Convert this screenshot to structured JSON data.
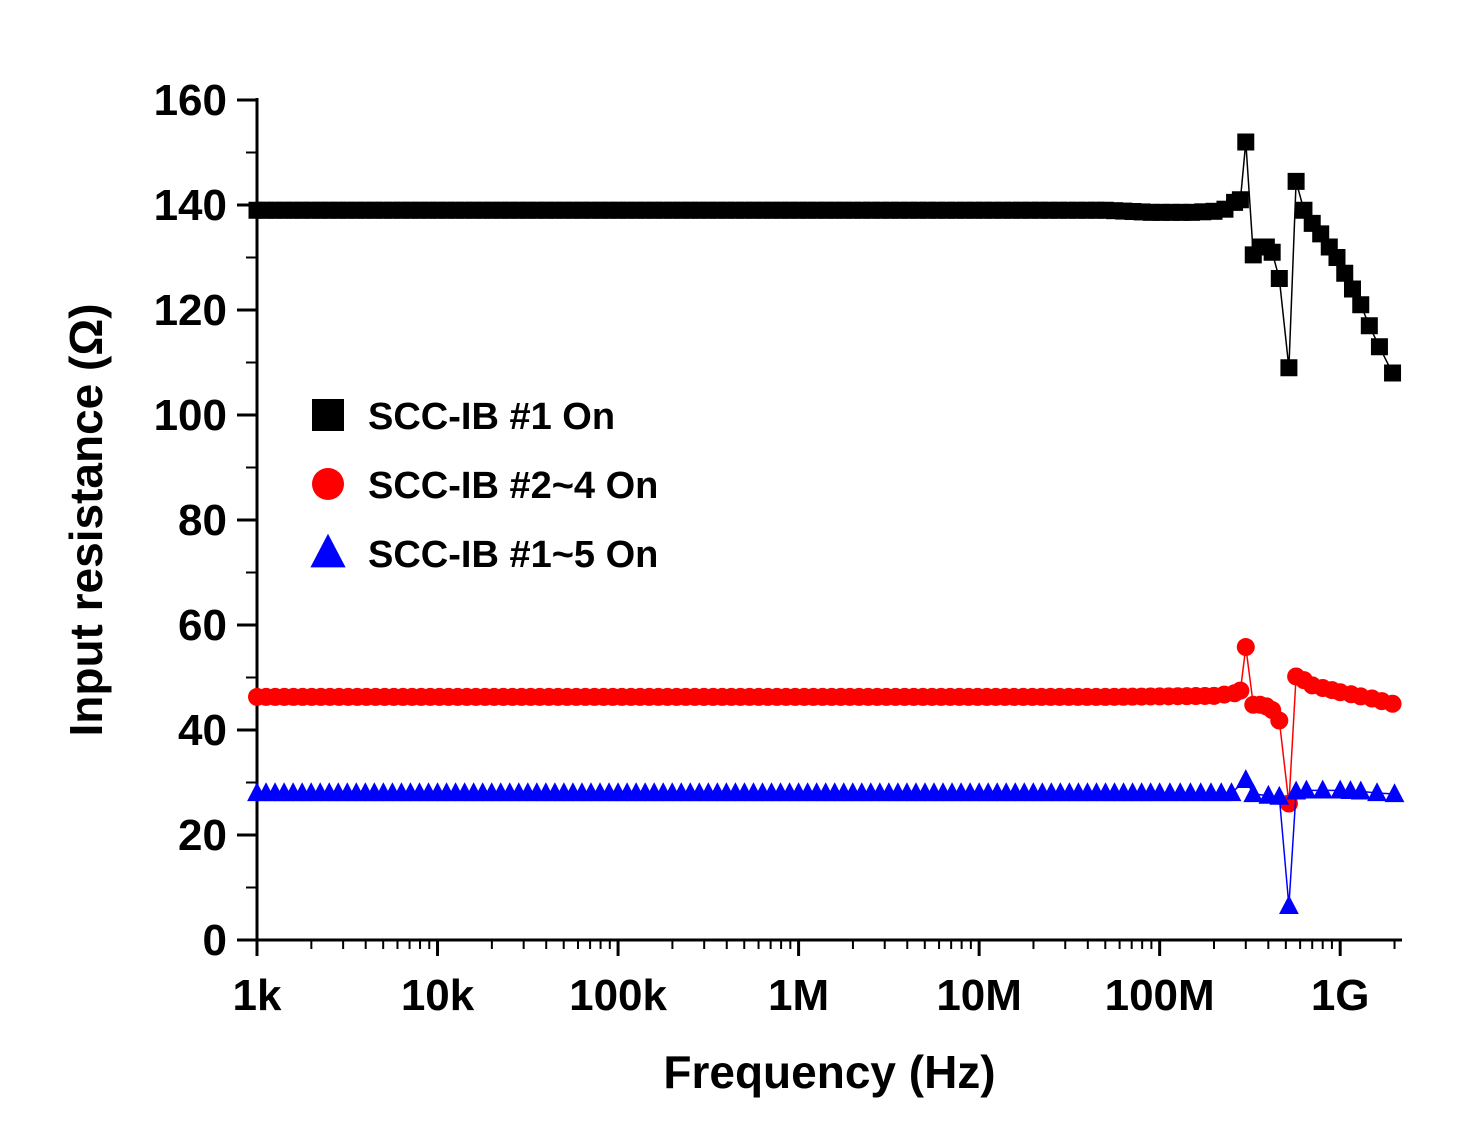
{
  "chart_data": {
    "type": "line",
    "xlabel": "Frequency (Hz)",
    "ylabel": "Input resistance (Ω)",
    "x_scale": "log",
    "xlim": [
      1000,
      2200000000
    ],
    "ylim": [
      0,
      160
    ],
    "x_ticks": [
      {
        "value": 1000,
        "label": "1k"
      },
      {
        "value": 10000,
        "label": "10k"
      },
      {
        "value": 100000,
        "label": "100k"
      },
      {
        "value": 1000000,
        "label": "1M"
      },
      {
        "value": 10000000,
        "label": "10M"
      },
      {
        "value": 100000000,
        "label": "100M"
      },
      {
        "value": 1000000000,
        "label": "1G"
      }
    ],
    "y_ticks": [
      {
        "value": 0,
        "label": "0"
      },
      {
        "value": 20,
        "label": "20"
      },
      {
        "value": 40,
        "label": "40"
      },
      {
        "value": 60,
        "label": "60"
      },
      {
        "value": 80,
        "label": "80"
      },
      {
        "value": 100,
        "label": "100"
      },
      {
        "value": 120,
        "label": "120"
      },
      {
        "value": 140,
        "label": "140"
      },
      {
        "value": 160,
        "label": "160"
      }
    ],
    "grid": false,
    "legend_position": "left-middle",
    "series": [
      {
        "name": "SCC-IB #1 On",
        "marker": "square",
        "color": "#000000",
        "points": [
          [
            1000,
            139
          ],
          [
            2000000,
            139
          ],
          [
            50000000,
            139
          ],
          [
            90000000,
            138.6
          ],
          [
            150000000,
            138.6
          ],
          [
            200000000,
            138.8
          ],
          [
            230000000,
            139.2
          ],
          [
            260000000,
            140.5
          ],
          [
            280000000,
            141
          ],
          [
            300000000,
            152
          ],
          [
            330000000,
            130.5
          ],
          [
            360000000,
            132
          ],
          [
            390000000,
            132
          ],
          [
            420000000,
            131
          ],
          [
            460000000,
            126
          ],
          [
            520000000,
            109
          ],
          [
            570000000,
            144.5
          ],
          [
            630000000,
            139
          ],
          [
            700000000,
            136.5
          ],
          [
            780000000,
            134.5
          ],
          [
            870000000,
            132
          ],
          [
            960000000,
            130
          ],
          [
            1060000000,
            127
          ],
          [
            1170000000,
            124
          ],
          [
            1300000000,
            121
          ],
          [
            1450000000,
            117
          ],
          [
            1650000000,
            113
          ],
          [
            1950000000,
            108
          ]
        ]
      },
      {
        "name": "SCC-IB #2~4 On",
        "marker": "circle",
        "color": "#ff0000",
        "points": [
          [
            1000,
            46.3
          ],
          [
            50000000,
            46.3
          ],
          [
            200000000,
            46.5
          ],
          [
            260000000,
            47
          ],
          [
            280000000,
            47.5
          ],
          [
            300000000,
            55.8
          ],
          [
            330000000,
            44.8
          ],
          [
            360000000,
            44.8
          ],
          [
            390000000,
            44.5
          ],
          [
            420000000,
            43.8
          ],
          [
            460000000,
            41.8
          ],
          [
            520000000,
            26
          ],
          [
            570000000,
            50.2
          ],
          [
            630000000,
            49.5
          ],
          [
            700000000,
            48.5
          ],
          [
            800000000,
            48
          ],
          [
            900000000,
            47.6
          ],
          [
            1000000000,
            47.2
          ],
          [
            1150000000,
            46.8
          ],
          [
            1300000000,
            46.4
          ],
          [
            1500000000,
            46
          ],
          [
            1700000000,
            45.5
          ],
          [
            1950000000,
            45
          ]
        ]
      },
      {
        "name": "SCC-IB #1~5 On",
        "marker": "triangle",
        "color": "#0000ff",
        "points": [
          [
            1000,
            28
          ],
          [
            100000000,
            28
          ],
          [
            250000000,
            28
          ],
          [
            300000000,
            30.5
          ],
          [
            330000000,
            27.8
          ],
          [
            400000000,
            27.5
          ],
          [
            460000000,
            27.3
          ],
          [
            520000000,
            6.5
          ],
          [
            570000000,
            28.3
          ],
          [
            650000000,
            28.5
          ],
          [
            800000000,
            28.5
          ],
          [
            1000000000,
            28.5
          ],
          [
            1300000000,
            28.3
          ],
          [
            1600000000,
            28
          ],
          [
            2000000000,
            27.8
          ]
        ]
      }
    ]
  }
}
